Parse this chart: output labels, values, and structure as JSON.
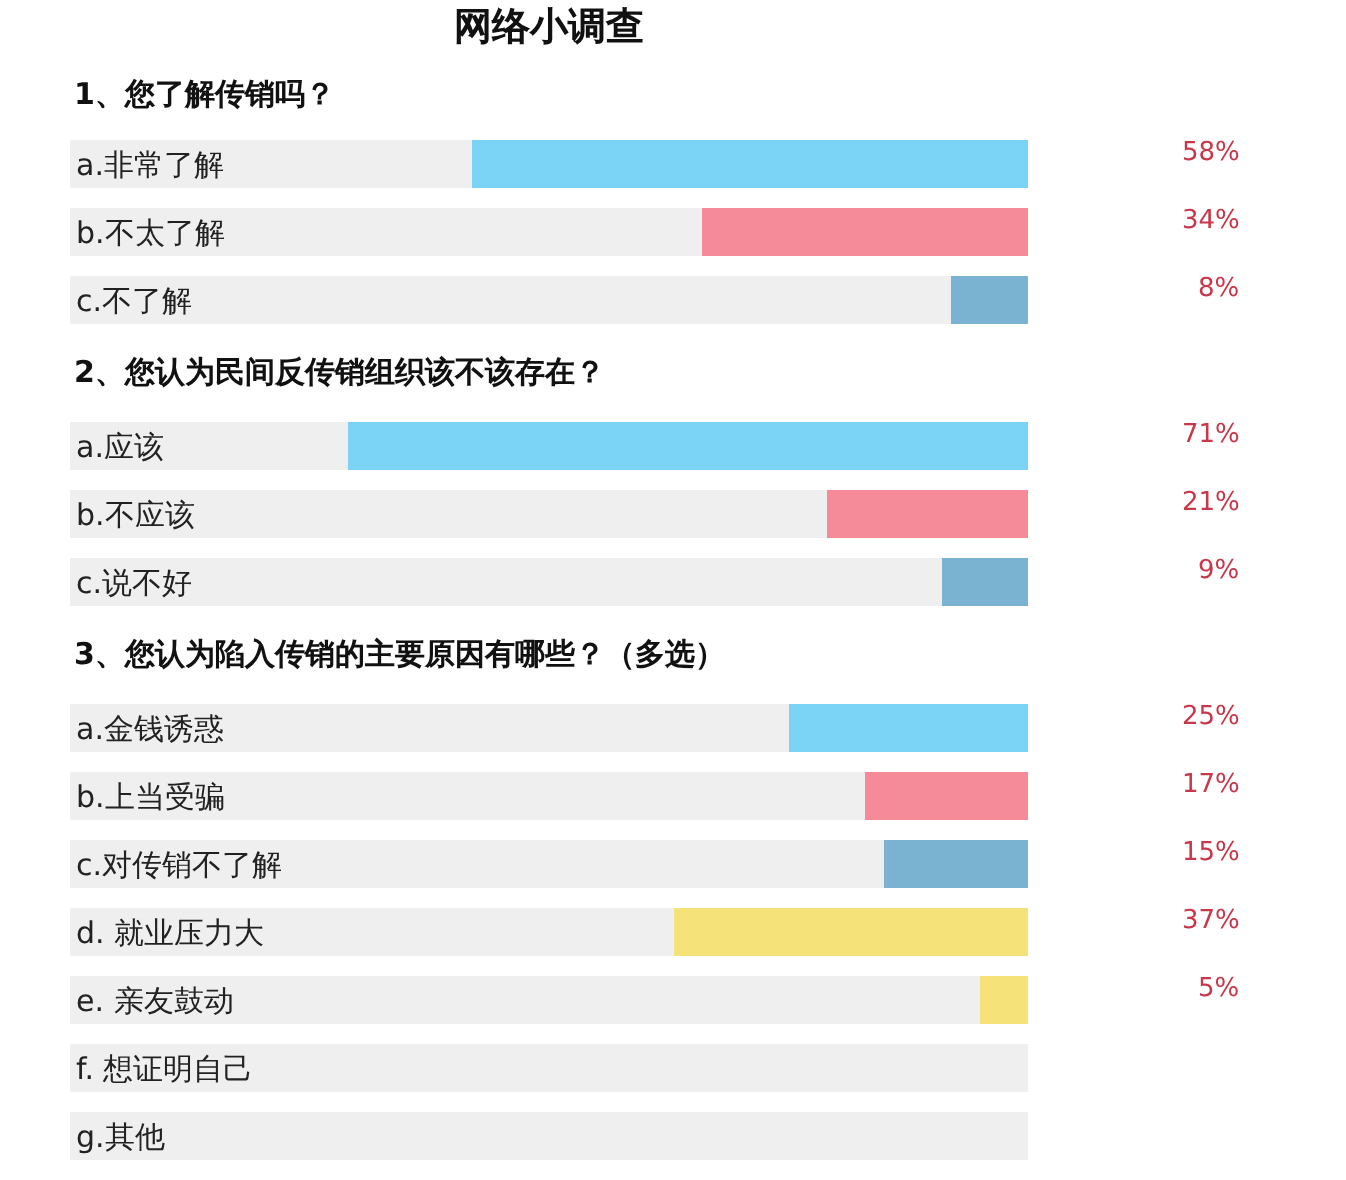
{
  "chart_data": [
    {
      "type": "bar",
      "orientation": "horizontal",
      "stacked": true,
      "title": "网络小调查",
      "subtitle": "1、您了解传销吗？",
      "categories": [
        "a.非常了解",
        "b.不太了解",
        "c.不了解"
      ],
      "series": [
        {
          "colors": [
            "#7bd3f5",
            "#f58a98",
            "#7ab3d2"
          ],
          "values": [
            58,
            34,
            8
          ],
          "value_labels": [
            "58%",
            "34%",
            "8%"
          ]
        },
        {
          "color": "#efefef",
          "values": [
            42,
            66,
            92
          ]
        }
      ],
      "xlim": [
        100,
        0
      ],
      "tick_labels": "y"
    },
    {
      "type": "bar",
      "orientation": "horizontal",
      "stacked": true,
      "title": "2、您认为民间反传销组织该不该存在？",
      "categories": [
        "a.应该",
        "b.不应该",
        "c.说不好"
      ],
      "series": [
        {
          "colors": [
            "#7bd3f5",
            "#f58a98",
            "#7ab3d2"
          ],
          "values": [
            71,
            21,
            9
          ],
          "value_labels": [
            "71%",
            "21%",
            "9%"
          ]
        },
        {
          "color": "#efefef",
          "values": [
            29,
            79,
            91
          ]
        }
      ],
      "xlim": [
        100,
        0
      ],
      "tick_labels": "y"
    },
    {
      "type": "bar",
      "orientation": "horizontal",
      "stacked": true,
      "title": "3、您认为陷入传销的主要原因有哪些？（多选）",
      "categories": [
        "a.金钱诱惑",
        "b.上当受骗",
        "c.对传销不了解",
        "d. 就业压力大",
        "e. 亲友鼓动",
        "f. 想证明自己",
        "g.其他"
      ],
      "series": [
        {
          "colors": [
            "#7bd3f5",
            "#f58a98",
            "#7ab3d2",
            "#f5e37a",
            "#f5e37a",
            "#f5e37a",
            "#f5e37a"
          ],
          "values": [
            25,
            17,
            15,
            37,
            5,
            null,
            null
          ],
          "value_labels": [
            "25%",
            "17%",
            "15%",
            "37%",
            "5%",
            null,
            null
          ]
        },
        {
          "color": "#efefef",
          "values": [
            75,
            83,
            85,
            63,
            95,
            100,
            100
          ]
        }
      ],
      "xlim": [
        100,
        0
      ],
      "tick_labels": "y"
    }
  ]
}
